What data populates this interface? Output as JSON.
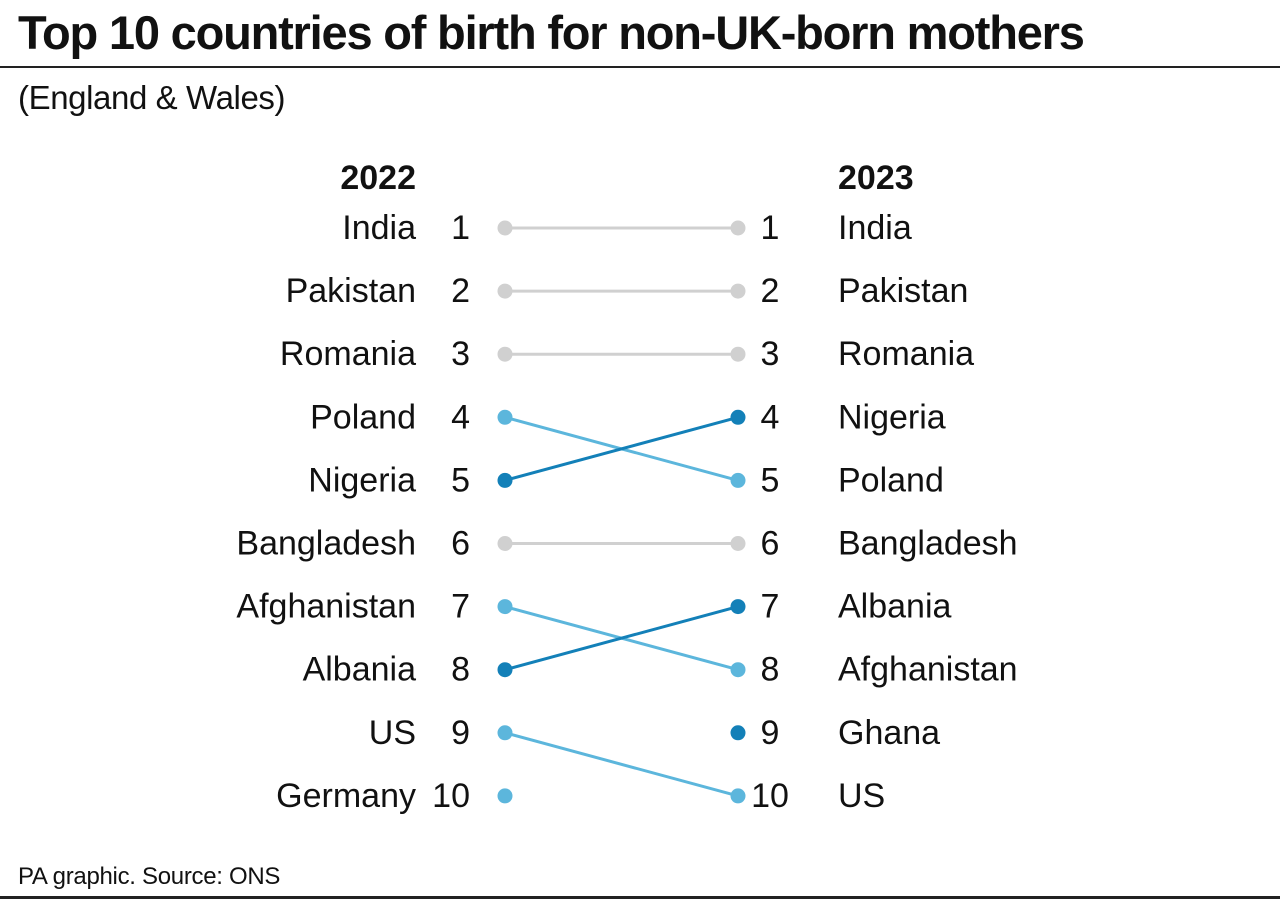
{
  "header": {
    "title": "Top 10 countries of birth for non-UK-born mothers",
    "subtitle": "(England & Wales)"
  },
  "footer": {
    "source": "PA graphic. Source: ONS"
  },
  "colors": {
    "unchanged": "#d0d0d0",
    "rose": "#1380b8",
    "fell": "#5cb6dc",
    "text": "#111111"
  },
  "chart_data": {
    "type": "slope",
    "left_year": "2022",
    "right_year": "2023",
    "left": [
      {
        "rank": 1,
        "country": "India"
      },
      {
        "rank": 2,
        "country": "Pakistan"
      },
      {
        "rank": 3,
        "country": "Romania"
      },
      {
        "rank": 4,
        "country": "Poland"
      },
      {
        "rank": 5,
        "country": "Nigeria"
      },
      {
        "rank": 6,
        "country": "Bangladesh"
      },
      {
        "rank": 7,
        "country": "Afghanistan"
      },
      {
        "rank": 8,
        "country": "Albania"
      },
      {
        "rank": 9,
        "country": "US"
      },
      {
        "rank": 10,
        "country": "Germany"
      }
    ],
    "right": [
      {
        "rank": 1,
        "country": "India"
      },
      {
        "rank": 2,
        "country": "Pakistan"
      },
      {
        "rank": 3,
        "country": "Romania"
      },
      {
        "rank": 4,
        "country": "Nigeria"
      },
      {
        "rank": 5,
        "country": "Poland"
      },
      {
        "rank": 6,
        "country": "Bangladesh"
      },
      {
        "rank": 7,
        "country": "Albania"
      },
      {
        "rank": 8,
        "country": "Afghanistan"
      },
      {
        "rank": 9,
        "country": "Ghana"
      },
      {
        "rank": 10,
        "country": "US"
      }
    ]
  }
}
